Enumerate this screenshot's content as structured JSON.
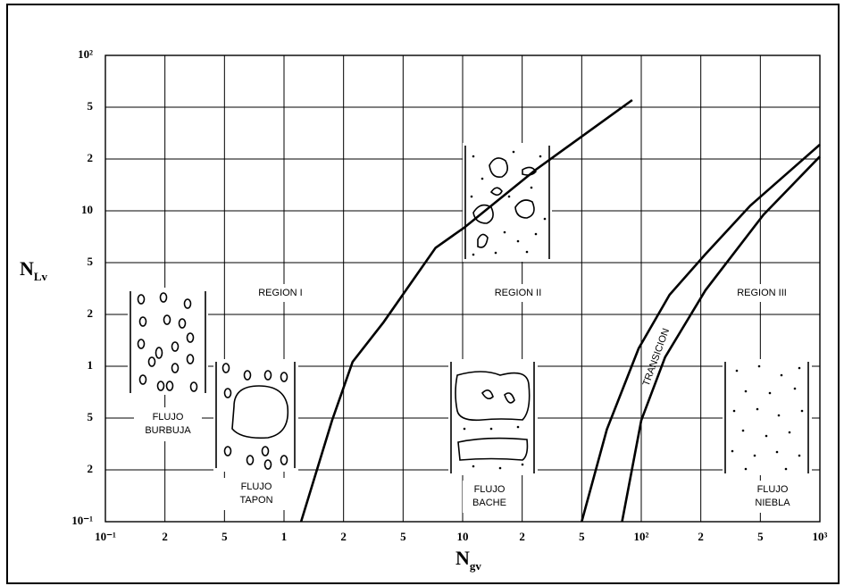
{
  "chart_data": {
    "type": "line",
    "x_label": {
      "main": "N",
      "sub": "gv"
    },
    "y_label": {
      "main": "N",
      "sub": "Lv"
    },
    "xlog": true,
    "ylog": true,
    "grid": true,
    "xlim": [
      0.1,
      1000
    ],
    "ylim": [
      0.1,
      100
    ],
    "xticks": [
      {
        "value": 0.1,
        "label": "10⁻¹"
      },
      {
        "value": 0.2,
        "label": "2"
      },
      {
        "value": 0.5,
        "label": "5"
      },
      1,
      2,
      5,
      10,
      {
        "value": 20,
        "label": "2"
      },
      {
        "value": 50,
        "label": "5"
      },
      {
        "value": 100,
        "label": "10²"
      },
      {
        "value": 200,
        "label": "2"
      },
      {
        "value": 500,
        "label": "5"
      },
      {
        "value": 1000,
        "label": "10³"
      }
    ],
    "yticks": [
      {
        "value": 0.1,
        "label": "10⁻¹"
      },
      {
        "value": 0.2,
        "label": "2"
      },
      {
        "value": 0.5,
        "label": "5"
      },
      1,
      2,
      5,
      10,
      {
        "value": 20,
        "label": "2"
      },
      {
        "value": 50,
        "label": "5"
      },
      {
        "value": 100,
        "label": "10²"
      }
    ],
    "series": [
      {
        "color": "#000000",
        "x": [
          1.22,
          1.75,
          2.3,
          3.7,
          7.3,
          10.2,
          24.6,
          90
        ],
        "values": [
          0.1,
          0.48,
          1.06,
          1.8,
          6.1,
          8.0,
          17.3,
          55
        ]
      },
      {
        "color": "#000000",
        "x": [
          50,
          67,
          97,
          139,
          215,
          428,
          1000
        ],
        "values": [
          0.1,
          0.41,
          1.27,
          2.83,
          5.6,
          10.7,
          25.8
        ]
      },
      {
        "color": "#000000",
        "x": [
          80,
          100,
          132,
          215,
          519,
          1000
        ],
        "values": [
          0.1,
          0.48,
          1.13,
          3.07,
          9.5,
          20.9
        ]
      }
    ],
    "regions": [
      "REGION I",
      "REGION II",
      "REGION III",
      "TRANSICION"
    ],
    "flow_labels": [
      [
        "FLUJO",
        "BURBUJA"
      ],
      [
        "FLUJO",
        "TAPON"
      ],
      [
        "FLUJO",
        "BACHE"
      ],
      [
        "FLUJO",
        "NIEBLA"
      ]
    ]
  }
}
